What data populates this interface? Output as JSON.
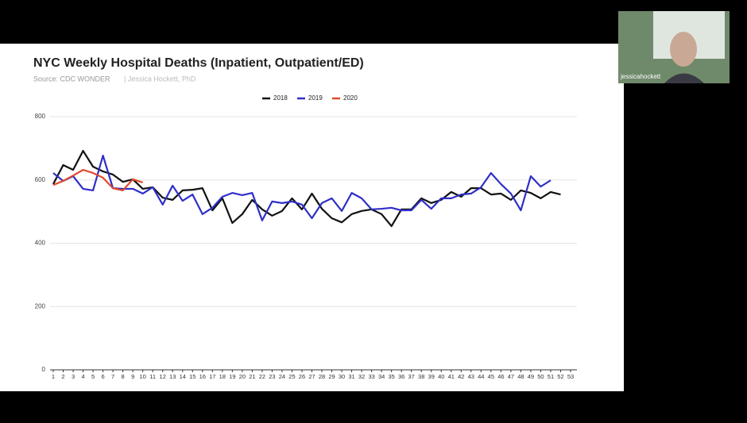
{
  "chart_data": {
    "type": "line",
    "title": "NYC Weekly Hospital Deaths (Inpatient, Outpatient/ED)",
    "subtitle": "Source: CDC WONDER",
    "author": "| Jessica Hockett, PhD",
    "x": [
      1,
      2,
      3,
      4,
      5,
      6,
      7,
      8,
      9,
      10,
      11,
      12,
      13,
      14,
      15,
      16,
      17,
      18,
      19,
      20,
      21,
      22,
      23,
      24,
      25,
      26,
      27,
      28,
      29,
      30,
      31,
      32,
      33,
      34,
      35,
      36,
      37,
      38,
      39,
      40,
      41,
      42,
      43,
      44,
      45,
      46,
      47,
      48,
      49,
      50,
      51,
      52,
      53
    ],
    "xlim": [
      1,
      53
    ],
    "xticks": [
      1,
      2,
      3,
      4,
      5,
      6,
      7,
      8,
      9,
      10,
      11,
      12,
      13,
      14,
      15,
      16,
      17,
      18,
      19,
      20,
      21,
      22,
      23,
      24,
      25,
      26,
      27,
      28,
      29,
      30,
      31,
      32,
      33,
      34,
      35,
      36,
      37,
      38,
      39,
      40,
      41,
      42,
      43,
      44,
      45,
      46,
      47,
      48,
      49,
      50,
      51,
      52,
      53
    ],
    "ylim": [
      0,
      800
    ],
    "yticks": [
      0,
      200,
      400,
      600,
      800
    ],
    "grid": true,
    "legend": "top",
    "series": [
      {
        "name": "2018",
        "color": "#111111",
        "values": [
          587,
          647,
          632,
          692,
          642,
          627,
          617,
          594,
          602,
          572,
          577,
          544,
          537,
          567,
          569,
          574,
          504,
          542,
          464,
          492,
          537,
          507,
          487,
          502,
          542,
          507,
          557,
          509,
          479,
          466,
          492,
          502,
          507,
          492,
          454,
          507,
          507,
          542,
          527,
          537,
          562,
          547,
          574,
          574,
          554,
          557,
          537,
          567,
          559,
          542,
          562,
          554,
          null
        ]
      },
      {
        "name": "2019",
        "color": "#2f2fc8",
        "values": [
          622,
          597,
          612,
          572,
          567,
          677,
          574,
          572,
          572,
          557,
          577,
          522,
          582,
          534,
          554,
          492,
          512,
          547,
          559,
          552,
          559,
          472,
          532,
          527,
          532,
          522,
          479,
          527,
          542,
          502,
          559,
          542,
          507,
          509,
          512,
          504,
          504,
          537,
          509,
          542,
          542,
          554,
          557,
          577,
          622,
          587,
          557,
          504,
          612,
          579,
          599,
          null,
          null
        ]
      },
      {
        "name": "2020",
        "color": "#e0492e",
        "values": [
          584,
          597,
          614,
          632,
          622,
          607,
          574,
          567,
          602,
          592,
          null,
          null,
          null,
          null,
          null,
          null,
          null,
          null,
          null,
          null,
          null,
          null,
          null,
          null,
          null,
          null,
          null,
          null,
          null,
          null,
          null,
          null,
          null,
          null,
          null,
          null,
          null,
          null,
          null,
          null,
          null,
          null,
          null,
          null,
          null,
          null,
          null,
          null,
          null,
          null,
          null,
          null,
          null
        ]
      }
    ]
  },
  "video_tile": {
    "name": "jessicahockett"
  }
}
